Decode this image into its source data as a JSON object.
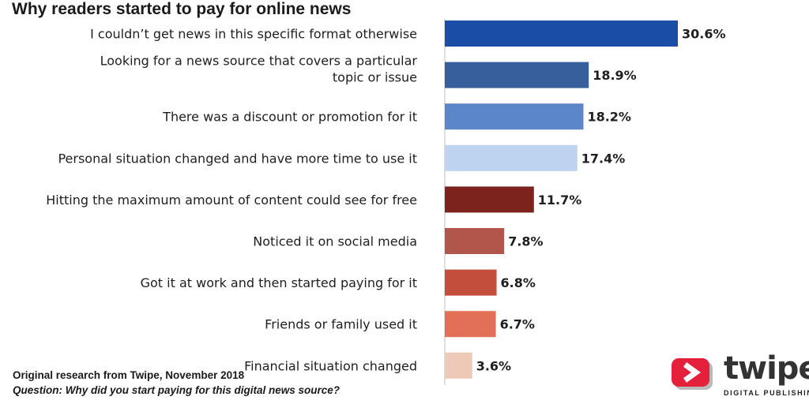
{
  "chart_data": {
    "type": "bar",
    "orientation": "horizontal",
    "title": "Why readers started to pay for online news",
    "categories": [
      [
        "I couldn’t get news in this specific format otherwise"
      ],
      [
        "Looking for a news source that covers a particular",
        "topic or issue"
      ],
      [
        "There was a discount or promotion for it"
      ],
      [
        "Personal situation changed and have more time to use it"
      ],
      [
        "Hitting the maximum amount of content could see for free"
      ],
      [
        "Noticed it on social media"
      ],
      [
        "Got it at work and then started paying for it"
      ],
      [
        "Friends or family used it"
      ],
      [
        "Financial situation changed"
      ]
    ],
    "values": [
      30.6,
      18.9,
      18.2,
      17.4,
      11.7,
      7.8,
      6.8,
      6.7,
      3.6
    ],
    "value_labels": [
      "30.6%",
      "18.9%",
      "18.2%",
      "17.4%",
      "11.7%",
      "7.8%",
      "6.8%",
      "6.7%",
      "3.6%"
    ],
    "colors": [
      "#1a4da5",
      "#365f9c",
      "#5b87c8",
      "#bdd3ef",
      "#7b231c",
      "#b2554b",
      "#c44e3c",
      "#e27056",
      "#efc9b8"
    ],
    "xlim": [
      0,
      30.6
    ],
    "xlabel": "",
    "ylabel": "",
    "grid": false
  },
  "footer": {
    "source": "Original research from Twipe, November 2018",
    "question": "Question: Why did you start paying for this digital news source?"
  },
  "logo": {
    "icon": "twipe-arrow-icon",
    "name": "twipe",
    "tagline": "DIGITAL PUBLISHING",
    "color": "#e4203a"
  }
}
